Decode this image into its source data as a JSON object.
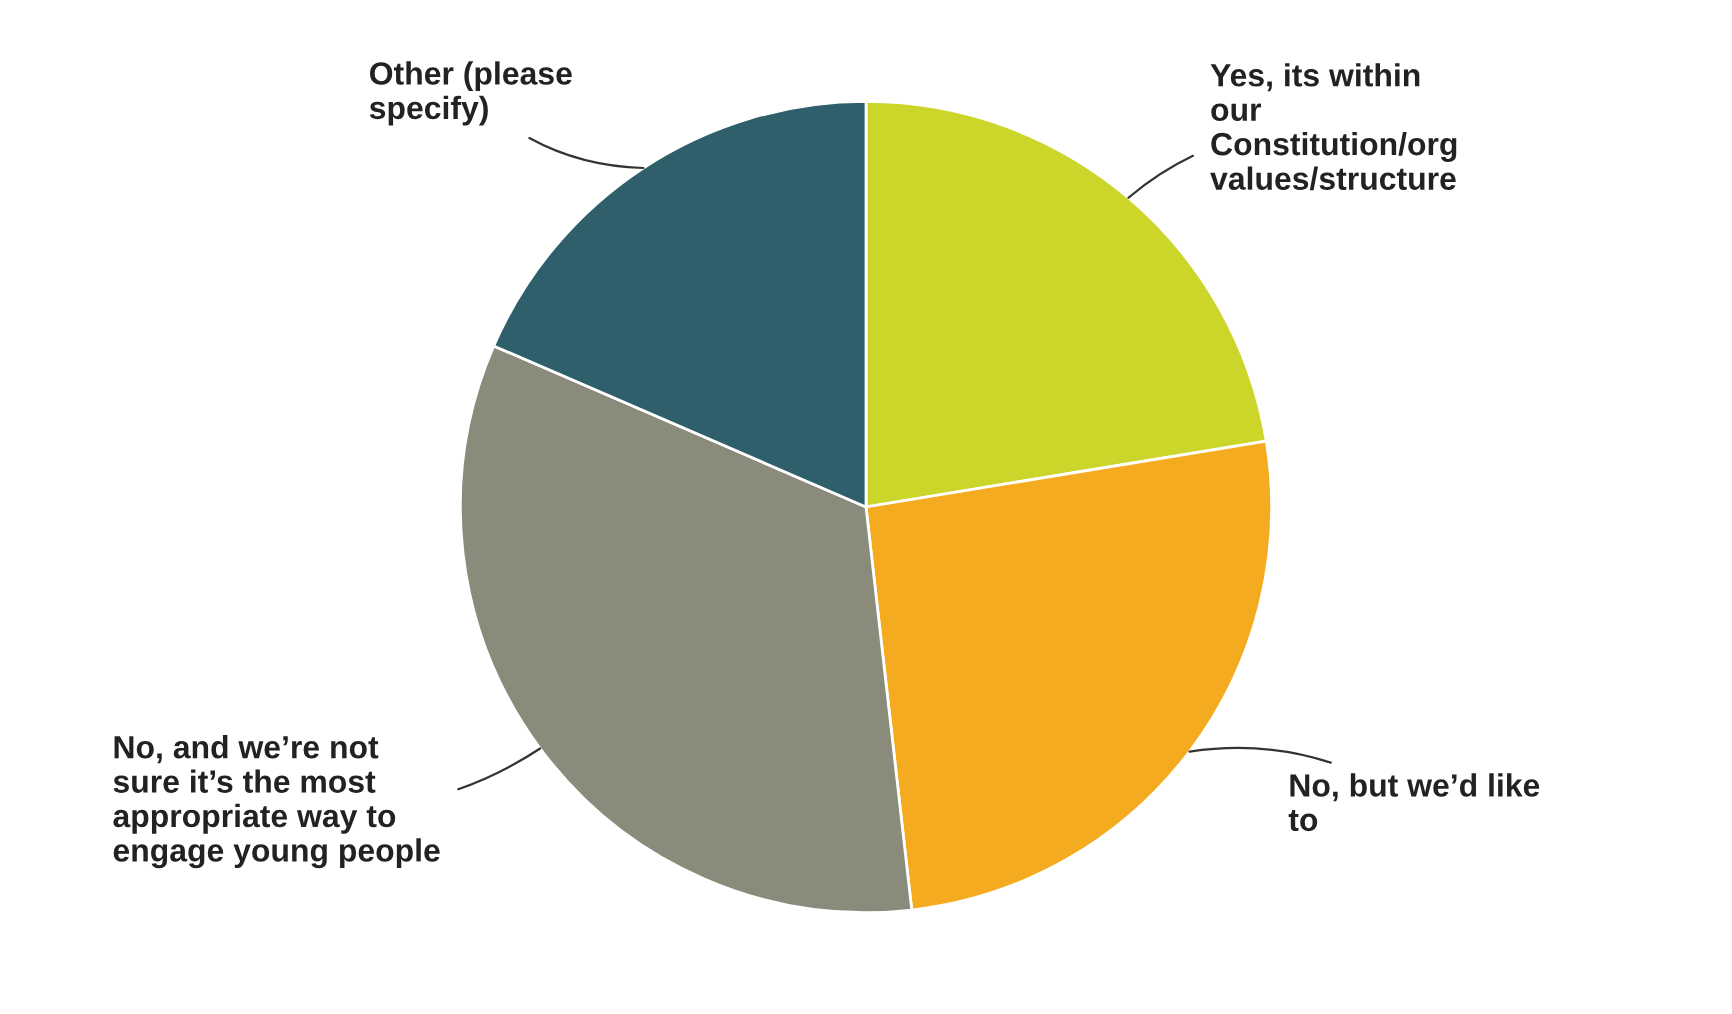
{
  "chart_data": {
    "type": "pie",
    "categories": [
      "Yes, its within\nour\nConstitution/org\nvalues/structure",
      "No, but we’d like\nto",
      "No, and we’re not\nsure it’s the most\nappropriate way to\nengage young people",
      "Other (please\nspecify)"
    ],
    "values": [
      22.4,
      25.8,
      33.3,
      18.5
    ],
    "colors": [
      "#ccd52a",
      "#f5ab1f",
      "#8a8b7a",
      "#2e5f6b"
    ],
    "legend": false
  }
}
